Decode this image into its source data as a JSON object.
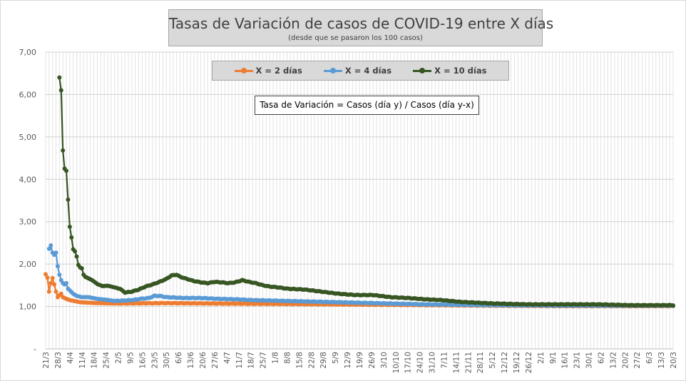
{
  "chart_data": {
    "type": "line",
    "title": "Tasas de Variación de casos de COVID-19 entre X días",
    "subtitle": "(desde que se pasaron los 100 casos)",
    "annotation": "Tasa de Variación = Casos (día y) / Casos (día y-x)",
    "ylim": [
      0,
      7
    ],
    "y_tick_labels": [
      "-",
      "1,00",
      "2,00",
      "3,00",
      "4,00",
      "5,00",
      "6,00",
      "7,00"
    ],
    "x_tick_labels": [
      "21/3",
      "28/3",
      "4/4",
      "11/4",
      "18/4",
      "25/4",
      "2/5",
      "9/5",
      "16/5",
      "23/5",
      "30/5",
      "6/6",
      "13/6",
      "20/6",
      "27/6",
      "4/7",
      "11/7",
      "18/7",
      "25/7",
      "1/8",
      "8/8",
      "15/8",
      "22/8",
      "29/8",
      "5/9",
      "12/9",
      "19/9",
      "26/9",
      "3/10",
      "10/10",
      "17/10",
      "24/10",
      "31/10",
      "7/11",
      "14/11",
      "21/11",
      "28/11",
      "5/12",
      "12/12",
      "19/12",
      "26/12",
      "2/1",
      "9/1",
      "16/1",
      "23/1",
      "30/1",
      "6/2",
      "13/2",
      "20/2",
      "27/2",
      "6/3",
      "13/3",
      "20/3"
    ],
    "grid": true,
    "legend_position": "top",
    "series": [
      {
        "name": "X = 2 días",
        "color": "#ed7d31",
        "start_day": 0,
        "keypoints": [
          [
            0,
            1.76
          ],
          [
            1,
            1.68
          ],
          [
            2,
            1.35
          ],
          [
            3,
            1.55
          ],
          [
            4,
            1.67
          ],
          [
            5,
            1.52
          ],
          [
            6,
            1.35
          ],
          [
            7,
            1.22
          ],
          [
            8,
            1.27
          ],
          [
            9,
            1.3
          ],
          [
            10,
            1.22
          ],
          [
            12,
            1.18
          ],
          [
            14,
            1.15
          ],
          [
            20,
            1.1
          ],
          [
            30,
            1.08
          ],
          [
            40,
            1.07
          ],
          [
            70,
            1.08
          ],
          [
            100,
            1.07
          ],
          [
            140,
            1.06
          ],
          [
            200,
            1.04
          ],
          [
            260,
            1.02
          ],
          [
            300,
            1.01
          ],
          [
            364,
            1.01
          ]
        ]
      },
      {
        "name": "X = 4 días",
        "color": "#5b9bd5",
        "start_day": 2,
        "keypoints": [
          [
            2,
            2.36
          ],
          [
            3,
            2.44
          ],
          [
            4,
            2.27
          ],
          [
            5,
            2.22
          ],
          [
            6,
            2.27
          ],
          [
            7,
            1.95
          ],
          [
            8,
            1.75
          ],
          [
            9,
            1.62
          ],
          [
            10,
            1.55
          ],
          [
            11,
            1.52
          ],
          [
            12,
            1.55
          ],
          [
            13,
            1.42
          ],
          [
            14,
            1.38
          ],
          [
            16,
            1.3
          ],
          [
            18,
            1.25
          ],
          [
            21,
            1.22
          ],
          [
            25,
            1.22
          ],
          [
            30,
            1.18
          ],
          [
            35,
            1.16
          ],
          [
            40,
            1.13
          ],
          [
            45,
            1.14
          ],
          [
            50,
            1.15
          ],
          [
            55,
            1.18
          ],
          [
            60,
            1.2
          ],
          [
            63,
            1.25
          ],
          [
            66,
            1.25
          ],
          [
            70,
            1.22
          ],
          [
            80,
            1.2
          ],
          [
            90,
            1.2
          ],
          [
            100,
            1.18
          ],
          [
            110,
            1.17
          ],
          [
            120,
            1.15
          ],
          [
            140,
            1.13
          ],
          [
            160,
            1.11
          ],
          [
            180,
            1.09
          ],
          [
            200,
            1.07
          ],
          [
            220,
            1.05
          ],
          [
            240,
            1.04
          ],
          [
            260,
            1.03
          ],
          [
            300,
            1.02
          ],
          [
            364,
            1.02
          ]
        ]
      },
      {
        "name": "X = 10 días",
        "color": "#375623",
        "start_day": 8,
        "keypoints": [
          [
            8,
            6.4
          ],
          [
            9,
            6.1
          ],
          [
            10,
            4.68
          ],
          [
            11,
            4.25
          ],
          [
            12,
            4.2
          ],
          [
            13,
            3.52
          ],
          [
            14,
            2.88
          ],
          [
            15,
            2.63
          ],
          [
            16,
            2.35
          ],
          [
            17,
            2.3
          ],
          [
            18,
            2.18
          ],
          [
            19,
            1.98
          ],
          [
            20,
            1.92
          ],
          [
            21,
            1.9
          ],
          [
            22,
            1.75
          ],
          [
            23,
            1.7
          ],
          [
            25,
            1.66
          ],
          [
            27,
            1.62
          ],
          [
            30,
            1.53
          ],
          [
            33,
            1.48
          ],
          [
            36,
            1.49
          ],
          [
            40,
            1.45
          ],
          [
            43,
            1.42
          ],
          [
            46,
            1.33
          ],
          [
            50,
            1.35
          ],
          [
            54,
            1.4
          ],
          [
            58,
            1.47
          ],
          [
            62,
            1.52
          ],
          [
            66,
            1.58
          ],
          [
            70,
            1.65
          ],
          [
            73,
            1.73
          ],
          [
            76,
            1.75
          ],
          [
            78,
            1.7
          ],
          [
            82,
            1.65
          ],
          [
            86,
            1.6
          ],
          [
            90,
            1.57
          ],
          [
            94,
            1.55
          ],
          [
            98,
            1.58
          ],
          [
            102,
            1.57
          ],
          [
            106,
            1.55
          ],
          [
            110,
            1.57
          ],
          [
            114,
            1.62
          ],
          [
            118,
            1.58
          ],
          [
            122,
            1.55
          ],
          [
            126,
            1.5
          ],
          [
            130,
            1.47
          ],
          [
            135,
            1.45
          ],
          [
            140,
            1.42
          ],
          [
            150,
            1.4
          ],
          [
            160,
            1.35
          ],
          [
            170,
            1.3
          ],
          [
            180,
            1.27
          ],
          [
            190,
            1.27
          ],
          [
            200,
            1.22
          ],
          [
            210,
            1.2
          ],
          [
            220,
            1.17
          ],
          [
            230,
            1.15
          ],
          [
            240,
            1.11
          ],
          [
            250,
            1.09
          ],
          [
            260,
            1.07
          ],
          [
            280,
            1.05
          ],
          [
            300,
            1.05
          ],
          [
            320,
            1.05
          ],
          [
            340,
            1.03
          ],
          [
            364,
            1.03
          ]
        ]
      }
    ]
  }
}
